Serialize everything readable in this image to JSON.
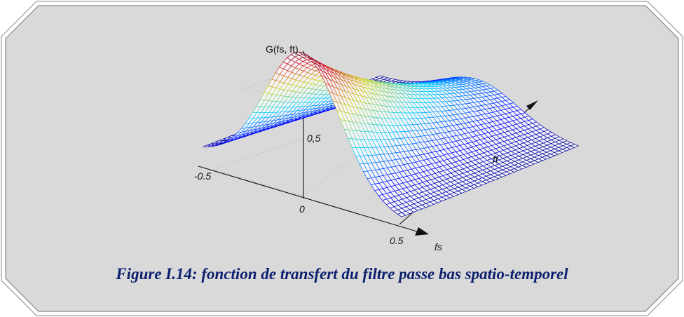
{
  "caption": "Figure I.14: fonction de transfert du filtre passe bas spatio-temporel",
  "chart_data": {
    "type": "surface",
    "title": "",
    "z_axis_label": "G(fs, ft)",
    "x_axis_label": "fs",
    "y_axis_label": "ft",
    "x_ticks": [
      "-0.5",
      "0",
      "0.5"
    ],
    "z_ticks": [
      "0,5"
    ],
    "x_range": [
      -0.5,
      0.5
    ],
    "y_range": [
      0,
      1
    ],
    "z_range": [
      0,
      1
    ],
    "peak": {
      "fs": 0,
      "ft": 0,
      "G": 1.0
    },
    "colormap": "jet",
    "grid": true
  }
}
